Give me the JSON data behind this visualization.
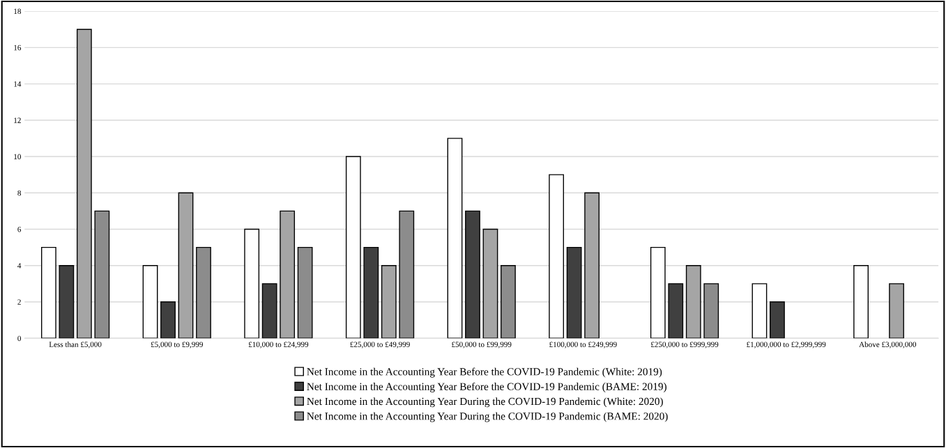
{
  "chart_data": {
    "type": "bar",
    "categories": [
      "Less than £5,000",
      "£5,000 to £9,999",
      "£10,000 to £24,999",
      "£25,000 to £49,999",
      "£50,000 to £99,999",
      "£100,000 to £249,999",
      "£250,000 to £999,999",
      "£1,000,000 to £2,999,999",
      "Above £3,000,000"
    ],
    "series": [
      {
        "name": "Net Income in the Accounting Year Before the COVID-19 Pandemic (White: 2019)",
        "color": "#ffffff",
        "values": [
          5,
          4,
          6,
          10,
          11,
          9,
          5,
          3,
          4
        ]
      },
      {
        "name": "Net Income in the Accounting Year Before the COVID-19 Pandemic (BAME: 2019)",
        "color": "#404040",
        "values": [
          4,
          2,
          3,
          5,
          7,
          5,
          3,
          2,
          null
        ]
      },
      {
        "name": "Net Income in the Accounting Year During the COVID-19 Pandemic (White: 2020)",
        "color": "#a5a5a5",
        "values": [
          17,
          8,
          7,
          4,
          6,
          8,
          4,
          null,
          3
        ]
      },
      {
        "name": "Net Income in the Accounting Year During the COVID-19 Pandemic (BAME: 2020)",
        "color": "#8c8c8c",
        "values": [
          7,
          5,
          5,
          7,
          4,
          null,
          3,
          null,
          null
        ]
      }
    ],
    "ylim": [
      0,
      18
    ],
    "yticks": [
      0,
      2,
      4,
      6,
      8,
      10,
      12,
      14,
      16,
      18
    ],
    "grid": "y",
    "legend": "bottom"
  }
}
